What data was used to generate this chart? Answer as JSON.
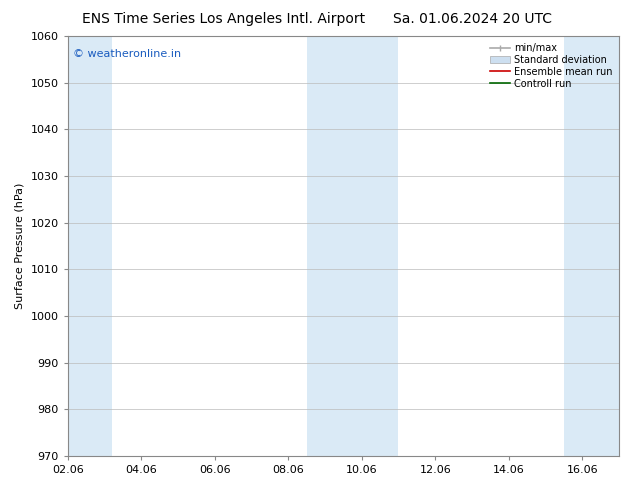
{
  "title_left": "ENS Time Series Los Angeles Intl. Airport",
  "title_right": "Sa. 01.06.2024 20 UTC",
  "ylabel": "Surface Pressure (hPa)",
  "ylim": [
    970,
    1060
  ],
  "yticks": [
    970,
    980,
    990,
    1000,
    1010,
    1020,
    1030,
    1040,
    1050,
    1060
  ],
  "xtick_labels": [
    "02.06",
    "04.06",
    "06.06",
    "08.06",
    "10.06",
    "12.06",
    "14.06",
    "16.06"
  ],
  "xtick_positions": [
    0,
    2,
    4,
    6,
    8,
    10,
    12,
    14
  ],
  "xlim": [
    0,
    15
  ],
  "shaded_bands": [
    {
      "xmin": 0,
      "xmax": 1.2
    },
    {
      "xmin": 6.5,
      "xmax": 9.0
    },
    {
      "xmin": 13.5,
      "xmax": 15.0
    }
  ],
  "shade_color": "#daeaf6",
  "watermark_text": "© weatheronline.in",
  "watermark_color": "#1a5cbf",
  "legend_entries": [
    {
      "label": "min/max",
      "color": "#aaaaaa",
      "lw": 1.2,
      "type": "errorbar"
    },
    {
      "label": "Standard deviation",
      "color": "#cddff0",
      "lw": 5,
      "type": "band"
    },
    {
      "label": "Ensemble mean run",
      "color": "#cc0000",
      "lw": 1.2,
      "type": "line"
    },
    {
      "label": "Controll run",
      "color": "#006600",
      "lw": 1.2,
      "type": "line"
    }
  ],
  "background_color": "#ffffff",
  "plot_bg_color": "#ffffff",
  "grid_color": "#bbbbbb",
  "title_fontsize": 10,
  "ylabel_fontsize": 8,
  "tick_fontsize": 8,
  "watermark_fontsize": 8,
  "legend_fontsize": 7
}
